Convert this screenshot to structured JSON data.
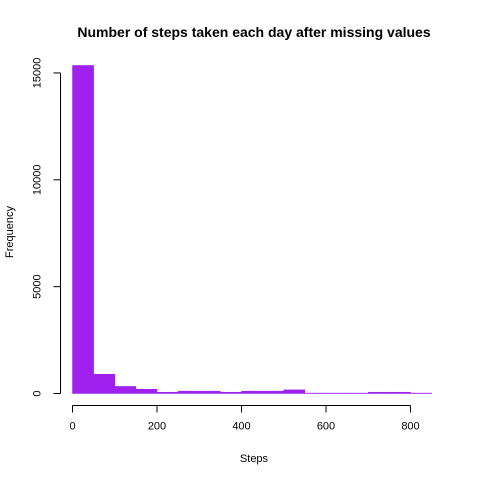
{
  "chart_data": {
    "type": "bar",
    "title": "Number of steps taken each day after missing values",
    "xlabel": "Steps",
    "ylabel": "Frequency",
    "bin_width": 50,
    "bins": [
      {
        "start": 0,
        "end": 50,
        "count": 15350
      },
      {
        "start": 50,
        "end": 100,
        "count": 900
      },
      {
        "start": 100,
        "end": 150,
        "count": 330
      },
      {
        "start": 150,
        "end": 200,
        "count": 200
      },
      {
        "start": 200,
        "end": 250,
        "count": 60
      },
      {
        "start": 250,
        "end": 300,
        "count": 110
      },
      {
        "start": 300,
        "end": 350,
        "count": 110
      },
      {
        "start": 350,
        "end": 400,
        "count": 60
      },
      {
        "start": 400,
        "end": 450,
        "count": 110
      },
      {
        "start": 450,
        "end": 500,
        "count": 110
      },
      {
        "start": 500,
        "end": 550,
        "count": 170
      },
      {
        "start": 550,
        "end": 600,
        "count": 20
      },
      {
        "start": 600,
        "end": 650,
        "count": 20
      },
      {
        "start": 650,
        "end": 700,
        "count": 20
      },
      {
        "start": 700,
        "end": 750,
        "count": 60
      },
      {
        "start": 750,
        "end": 800,
        "count": 60
      },
      {
        "start": 800,
        "end": 850,
        "count": 20
      }
    ],
    "xlim": [
      0,
      850
    ],
    "ylim": [
      0,
      15350
    ],
    "x_ticks": [
      0,
      200,
      400,
      600,
      800
    ],
    "y_ticks": [
      0,
      5000,
      10000,
      15000
    ],
    "bar_color": "#A020F0",
    "grid": false,
    "legend": "none"
  }
}
